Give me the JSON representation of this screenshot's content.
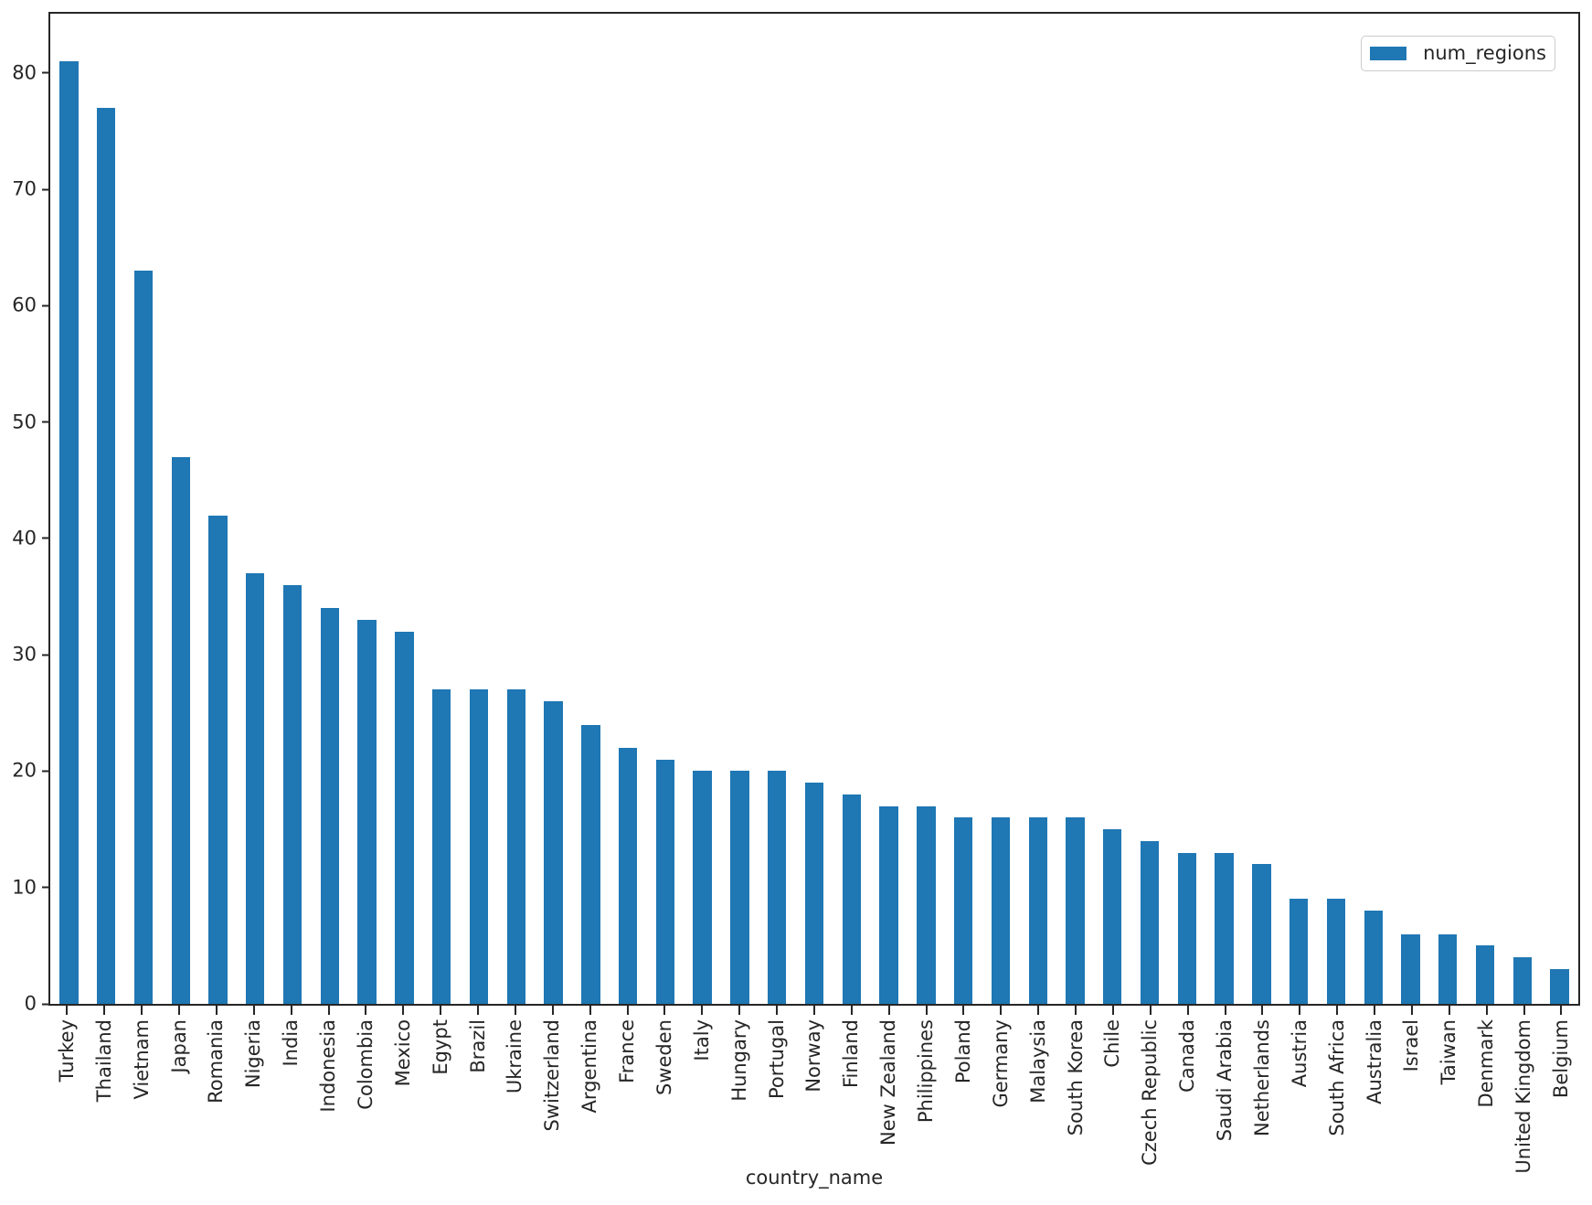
{
  "chart_data": {
    "type": "bar",
    "title": "",
    "xlabel": "country_name",
    "ylabel": "",
    "legend": {
      "label": "num_regions",
      "position": "upper right"
    },
    "bar_color": "#1f77b4",
    "axis_color": "#262626",
    "grid": false,
    "ylim": [
      0,
      85.1
    ],
    "y_ticks": [
      0,
      10,
      20,
      30,
      40,
      50,
      60,
      70,
      80
    ],
    "categories": [
      "Turkey",
      "Thailand",
      "Vietnam",
      "Japan",
      "Romania",
      "Nigeria",
      "India",
      "Indonesia",
      "Colombia",
      "Mexico",
      "Egypt",
      "Brazil",
      "Ukraine",
      "Switzerland",
      "Argentina",
      "France",
      "Sweden",
      "Italy",
      "Hungary",
      "Portugal",
      "Norway",
      "Finland",
      "New Zealand",
      "Philippines",
      "Poland",
      "Germany",
      "Malaysia",
      "South Korea",
      "Chile",
      "Czech Republic",
      "Canada",
      "Saudi Arabia",
      "Netherlands",
      "Austria",
      "South Africa",
      "Australia",
      "Israel",
      "Taiwan",
      "Denmark",
      "United Kingdom",
      "Belgium"
    ],
    "values": [
      81,
      77,
      63,
      47,
      42,
      37,
      36,
      34,
      33,
      32,
      27,
      27,
      27,
      26,
      24,
      22,
      21,
      20,
      20,
      20,
      19,
      18,
      17,
      17,
      16,
      16,
      16,
      16,
      15,
      14,
      13,
      13,
      12,
      9,
      9,
      8,
      6,
      6,
      5,
      4,
      3
    ]
  }
}
